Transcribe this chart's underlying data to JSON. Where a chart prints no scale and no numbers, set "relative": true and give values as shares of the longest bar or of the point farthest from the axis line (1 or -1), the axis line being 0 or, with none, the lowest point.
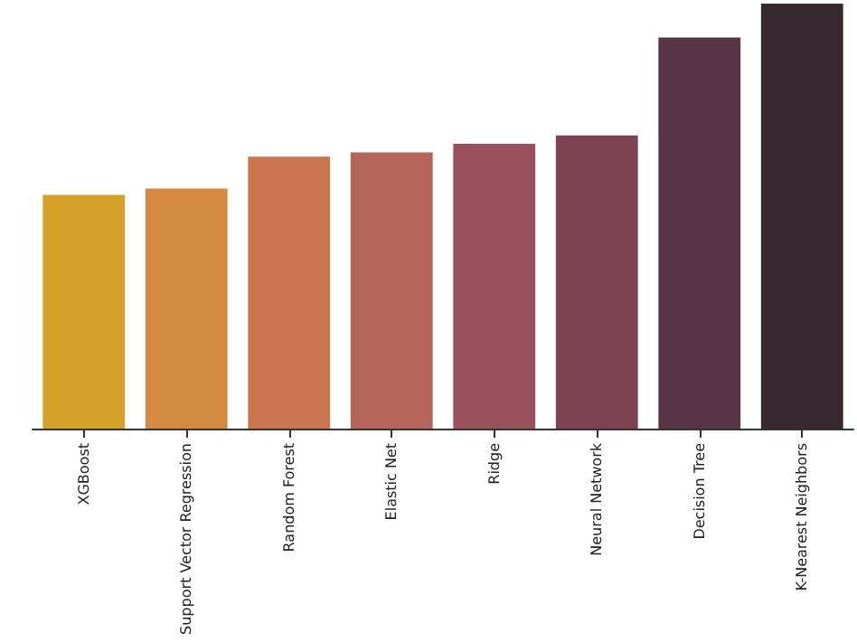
{
  "chart_data": {
    "type": "bar",
    "relative": true,
    "categories": [
      "XGBoost",
      "Support Vector Regression",
      "Random Forest",
      "Elastic Net",
      "Ridge",
      "Neural Network",
      "Decision Tree",
      "K-Nearest Neighbors"
    ],
    "values": [
      0.55,
      0.565,
      0.64,
      0.65,
      0.67,
      0.69,
      0.92,
      1
    ],
    "colors": [
      "#d4a027",
      "#d48a40",
      "#c97650",
      "#b5655a",
      "#99525a",
      "#7c4352",
      "#573545",
      "#35282f"
    ]
  }
}
